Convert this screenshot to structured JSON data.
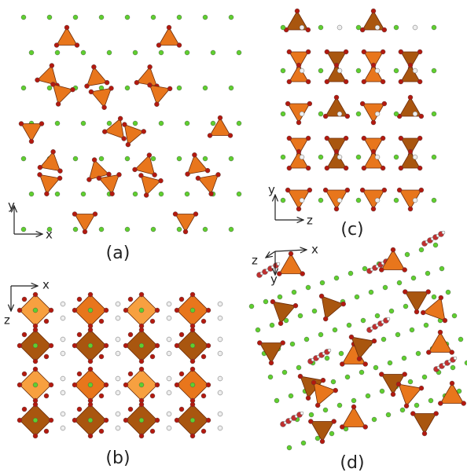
{
  "panels": [
    {
      "label": "(a)",
      "axes": [
        "y",
        "x"
      ]
    },
    {
      "label": "(b)",
      "axes": [
        "x",
        "z"
      ]
    },
    {
      "label": "(c)",
      "axes": [
        "y",
        "z"
      ]
    },
    {
      "label": "(d)",
      "axes": [
        "z",
        "x",
        "y"
      ]
    }
  ]
}
